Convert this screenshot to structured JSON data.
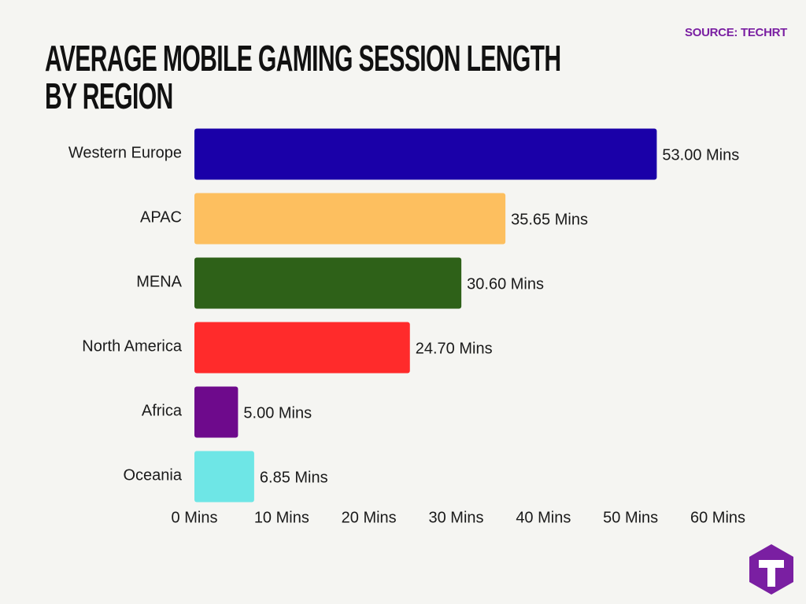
{
  "chart_data": {
    "type": "bar",
    "orientation": "horizontal",
    "title": "AVERAGE MOBILE GAMING SESSION LENGTH BY REGION",
    "source": "SOURCE: TECHRT",
    "categories": [
      "Western Europe",
      "APAC",
      "MENA",
      "North America",
      "Africa",
      "Oceania"
    ],
    "values": [
      53.0,
      35.65,
      30.6,
      24.7,
      5.0,
      6.85
    ],
    "value_labels": [
      "53.00 Mins",
      "35.65 Mins",
      "30.60 Mins",
      "24.70 Mins",
      "5.00 Mins",
      "6.85 Mins"
    ],
    "colors": [
      "#1a00a8",
      "#fdbf5f",
      "#2e6118",
      "#ff2b2b",
      "#6e0a8c",
      "#6ee6e6"
    ],
    "xlim": [
      0,
      60
    ],
    "xticks": [
      {
        "value": 0,
        "label": "0 Mins"
      },
      {
        "value": 10,
        "label": "10 Mins"
      },
      {
        "value": 20,
        "label": "20 Mins"
      },
      {
        "value": 30,
        "label": "30 Mins"
      },
      {
        "value": 40,
        "label": "40 Mins"
      },
      {
        "value": 50,
        "label": "50 Mins"
      },
      {
        "value": 60,
        "label": "60 Mins"
      }
    ],
    "grid": false
  }
}
